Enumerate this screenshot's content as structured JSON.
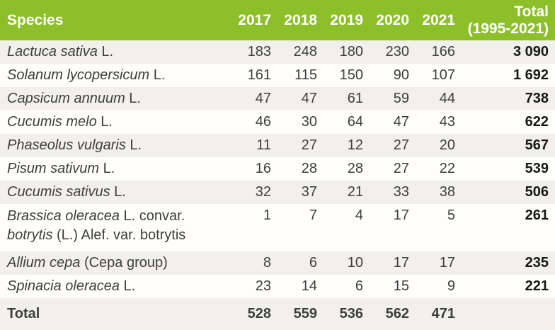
{
  "table": {
    "header": {
      "species_label": "Species",
      "years": [
        "2017",
        "2018",
        "2019",
        "2020",
        "2021"
      ],
      "total_line1": "Total",
      "total_line2": "(1995-2021)"
    },
    "rows": [
      {
        "name_segments": [
          {
            "text": "Lactuca sativa",
            "italic": true
          },
          {
            "text": " L.",
            "italic": false
          }
        ],
        "values": [
          "183",
          "248",
          "180",
          "230",
          "166"
        ],
        "total": "3 090"
      },
      {
        "name_segments": [
          {
            "text": "Solanum lycopersicum",
            "italic": true
          },
          {
            "text": " L.",
            "italic": false
          }
        ],
        "values": [
          "161",
          "115",
          "150",
          "90",
          "107"
        ],
        "total": "1 692"
      },
      {
        "name_segments": [
          {
            "text": "Capsicum annuum",
            "italic": true
          },
          {
            "text": " L.",
            "italic": false
          }
        ],
        "values": [
          "47",
          "47",
          "61",
          "59",
          "44"
        ],
        "total": "738"
      },
      {
        "name_segments": [
          {
            "text": "Cucumis melo",
            "italic": true
          },
          {
            "text": " L.",
            "italic": false
          }
        ],
        "values": [
          "46",
          "30",
          "64",
          "47",
          "43"
        ],
        "total": "622"
      },
      {
        "name_segments": [
          {
            "text": "Phaseolus vulgaris",
            "italic": true
          },
          {
            "text": " L.",
            "italic": false
          }
        ],
        "values": [
          "11",
          "27",
          "12",
          "27",
          "20"
        ],
        "total": "567"
      },
      {
        "name_segments": [
          {
            "text": "Pisum sativum",
            "italic": true
          },
          {
            "text": " L.",
            "italic": false
          }
        ],
        "values": [
          "16",
          "28",
          "28",
          "27",
          "22"
        ],
        "total": "539"
      },
      {
        "name_segments": [
          {
            "text": "Cucumis sativus",
            "italic": true
          },
          {
            "text": " L.",
            "italic": false
          }
        ],
        "values": [
          "32",
          "37",
          "21",
          "33",
          "38"
        ],
        "total": "506"
      },
      {
        "name_segments": [
          {
            "text": "Brassica oleracea",
            "italic": true
          },
          {
            "text": " L. convar.",
            "italic": false
          },
          {
            "br": true
          },
          {
            "text": "botrytis",
            "italic": true
          },
          {
            "text": " (L.) Alef. var. botrytis",
            "italic": false
          }
        ],
        "values": [
          "1",
          "7",
          "4",
          "17",
          "5"
        ],
        "total": "261"
      },
      {
        "name_segments": [
          {
            "text": "Allium cepa",
            "italic": true
          },
          {
            "text": " (Cepa group)",
            "italic": false
          }
        ],
        "values": [
          "8",
          "6",
          "10",
          "17",
          "17"
        ],
        "total": "235"
      },
      {
        "name_segments": [
          {
            "text": "Spinacia oleracea",
            "italic": true
          },
          {
            "text": " L.",
            "italic": false
          }
        ],
        "values": [
          "23",
          "14",
          "6",
          "15",
          "9"
        ],
        "total": "221"
      }
    ],
    "footer": {
      "label": "Total",
      "values": [
        "528",
        "559",
        "536",
        "562",
        "471"
      ],
      "total": ""
    }
  },
  "colors": {
    "header_bg": "#8CBF2A",
    "header_text": "#FFFFFF",
    "row_alt_bg": "#F2F0ED",
    "row_bg": "#FFFEFD",
    "body_text": "#3E3E3D",
    "total_text": "#171715"
  }
}
